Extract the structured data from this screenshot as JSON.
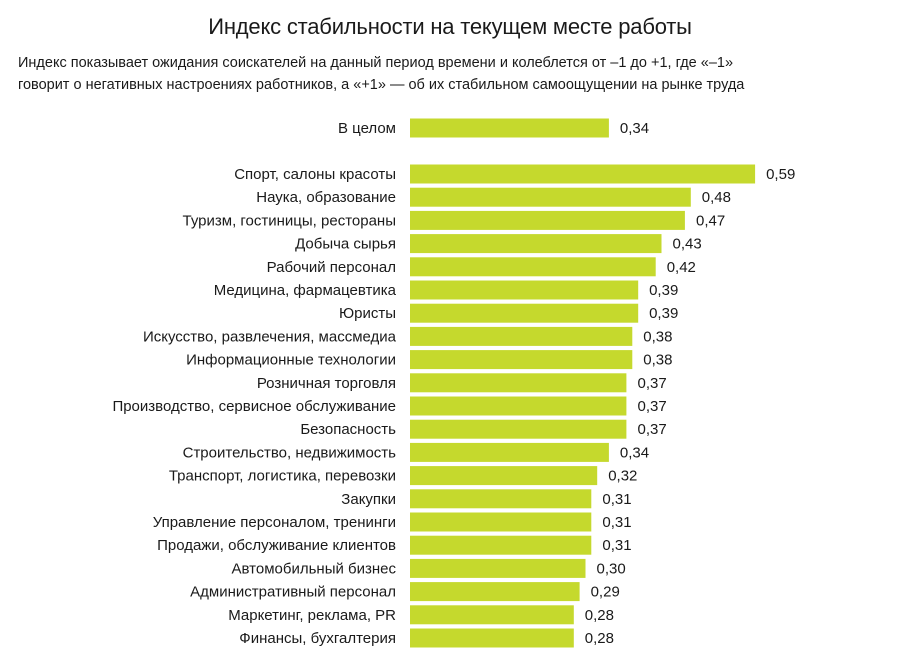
{
  "chart_data": {
    "type": "bar",
    "orientation": "horizontal",
    "title": "Индекс стабильности на текущем месте работы",
    "subtitle_line1": "Индекс показывает ожидания соискателей на данный период времени и колеблется от –1 до +1, где «–1»",
    "subtitle_line2": "говорит о негативных настроениях работников, а «+1» — об их стабильном самоощущении на рынке труда",
    "bar_color": "#c5d92d",
    "categories": [
      "В целом",
      "Спорт, салоны красоты",
      "Наука, образование",
      "Туризм, гостиницы, рестораны",
      "Добыча сырья",
      "Рабочий персонал",
      "Медицина, фармацевтика",
      "Юристы",
      "Искусство, развлечения, массмедиа",
      "Информационные технологии",
      "Розничная торговля",
      "Производство, сервисное обслуживание",
      "Безопасность",
      "Строительство, недвижимость",
      "Транспорт, логистика, перевозки",
      "Закупки",
      "Управление персоналом, тренинги",
      "Продажи, обслуживание клиентов",
      "Автомобильный бизнес",
      "Административный персонал",
      "Маркетинг, реклама, PR",
      "Финансы, бухгалтерия"
    ],
    "values": [
      0.34,
      0.59,
      0.48,
      0.47,
      0.43,
      0.42,
      0.39,
      0.39,
      0.38,
      0.38,
      0.37,
      0.37,
      0.37,
      0.34,
      0.32,
      0.31,
      0.31,
      0.31,
      0.3,
      0.29,
      0.28,
      0.28
    ],
    "value_labels": [
      "0,34",
      "0,59",
      "0,48",
      "0,47",
      "0,43",
      "0,42",
      "0,39",
      "0,39",
      "0,38",
      "0,38",
      "0,37",
      "0,37",
      "0,37",
      "0,34",
      "0,32",
      "0,31",
      "0,31",
      "0,31",
      "0,30",
      "0,29",
      "0,28",
      "0,28"
    ],
    "grid": false,
    "legend": "none"
  }
}
